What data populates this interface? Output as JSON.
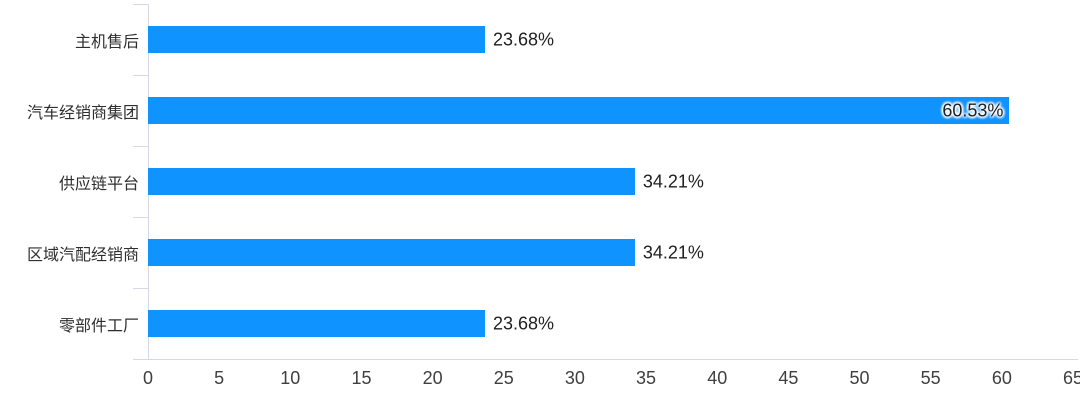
{
  "chart_data": {
    "type": "bar",
    "orientation": "horizontal",
    "title": "",
    "xlabel": "",
    "ylabel": "",
    "categories": [
      "主机售后",
      "汽车经销商集团",
      "供应链平台",
      "区域汽配经销商",
      "零部件工厂"
    ],
    "values": [
      23.68,
      60.53,
      34.21,
      34.21,
      23.68
    ],
    "data_labels": [
      "23.68%",
      "60.53%",
      "34.21%",
      "34.21%",
      "23.68%"
    ],
    "x_ticks": [
      0,
      5,
      10,
      15,
      20,
      25,
      30,
      35,
      40,
      45,
      50,
      55,
      60,
      65
    ],
    "xlim": [
      0,
      65
    ],
    "legend": "none",
    "gridlines": "off",
    "colors": {
      "bar": "#0f93ff",
      "axis_line": "#d6d8e5",
      "tick_label": "#3f3f3f",
      "category_label": "#2e2e2e",
      "data_label": "#1f1f1f",
      "background": "#ffffff"
    }
  }
}
